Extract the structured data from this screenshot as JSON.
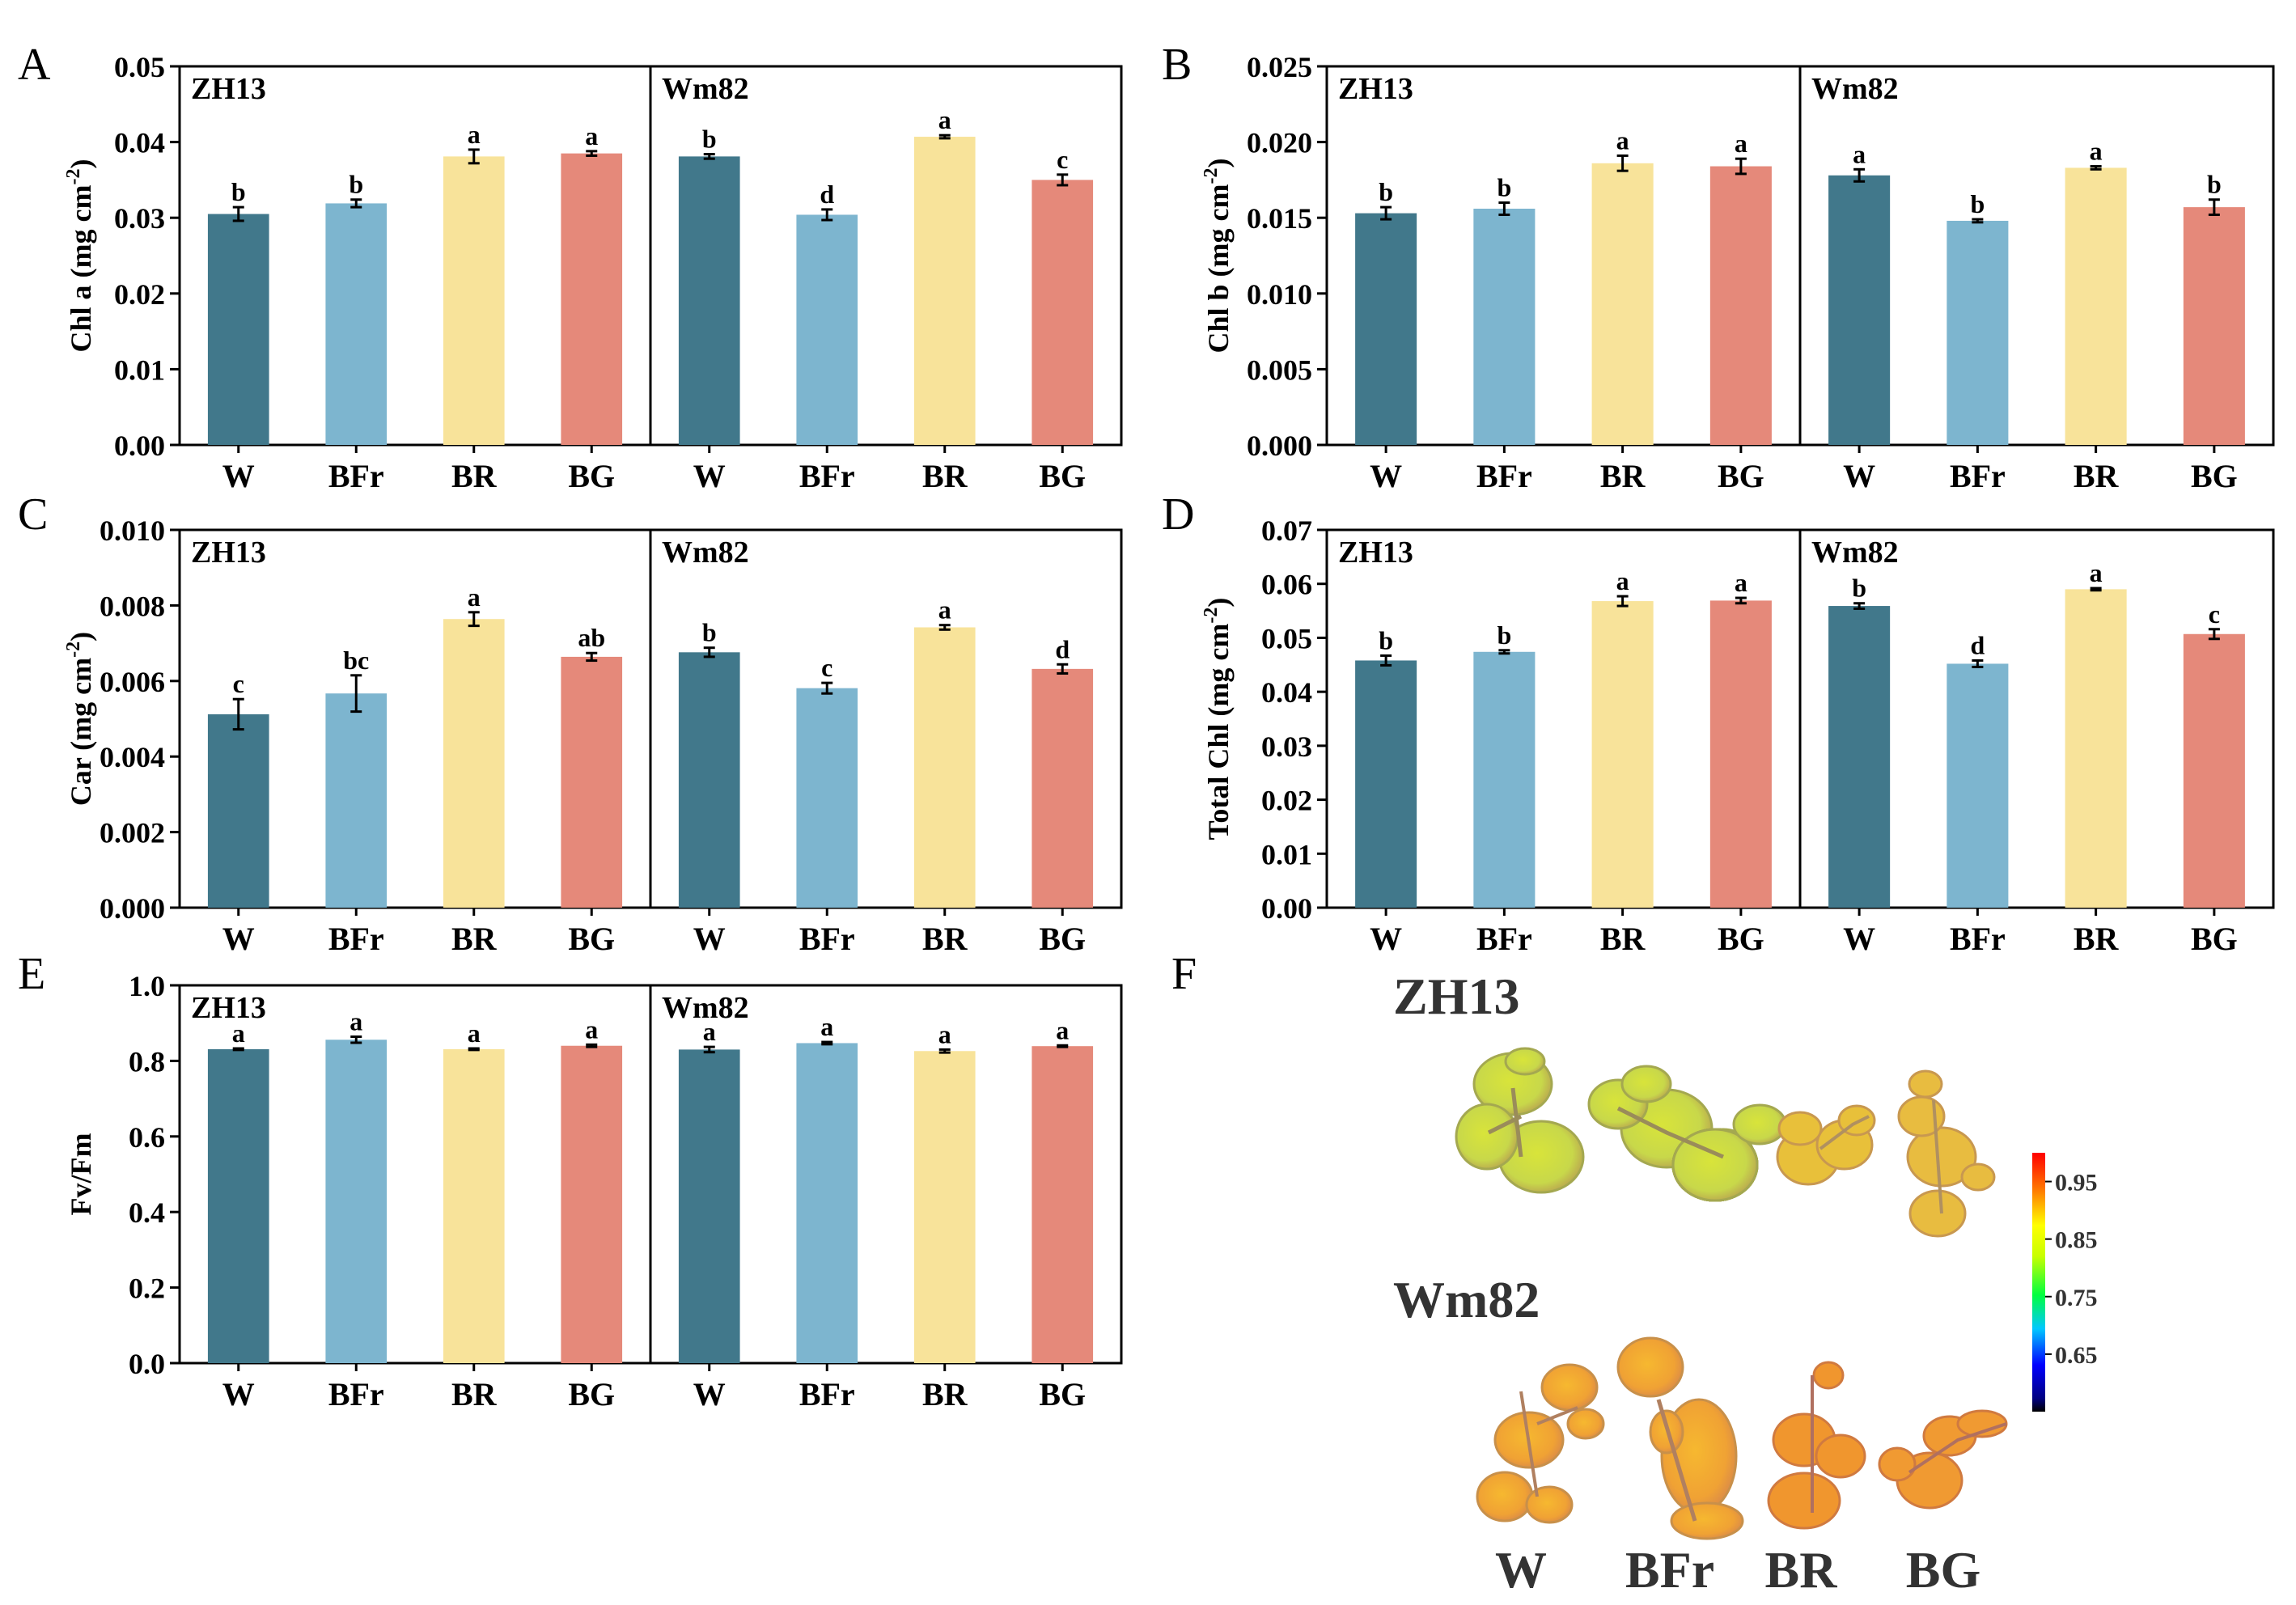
{
  "figure": {
    "labels": [
      "A",
      "B",
      "C",
      "D",
      "E",
      "F"
    ],
    "categories": [
      "W",
      "BFr",
      "BR",
      "BG"
    ],
    "groups": [
      "ZH13",
      "Wm82"
    ],
    "colors": {
      "W": "#41788B",
      "BFr": "#7DB5CF",
      "BR": "#F8E39A",
      "BG": "#E5897A"
    }
  },
  "chart_data": [
    {
      "panel": "A",
      "type": "bar",
      "ylabel": "Chl a (mg cm-2)",
      "ylabel_main": "Chl a (mg cm",
      "ylabel_sup": "-2",
      "ylabel_end": ")",
      "ylim": [
        0,
        0.05
      ],
      "yticks": [
        "0.00",
        "0.01",
        "0.02",
        "0.03",
        "0.04",
        "0.05"
      ],
      "categories": [
        "W",
        "BFr",
        "BR",
        "BG"
      ],
      "series": [
        {
          "name": "ZH13",
          "values": [
            0.0305,
            0.0319,
            0.0381,
            0.0385
          ],
          "errors": [
            0.0009,
            0.0005,
            0.0009,
            0.0003
          ],
          "letters": [
            "b",
            "b",
            "a",
            "a"
          ]
        },
        {
          "name": "Wm82",
          "values": [
            0.0381,
            0.0304,
            0.0407,
            0.035
          ],
          "errors": [
            0.0003,
            0.0007,
            0.0002,
            0.0007
          ],
          "letters": [
            "b",
            "d",
            "a",
            "c"
          ]
        }
      ]
    },
    {
      "panel": "B",
      "type": "bar",
      "ylabel": "Chl b (mg cm-2)",
      "ylabel_main": "Chl b (mg cm",
      "ylabel_sup": "-2",
      "ylabel_end": ")",
      "ylim": [
        0,
        0.025
      ],
      "yticks": [
        "0.000",
        "0.005",
        "0.010",
        "0.015",
        "0.020",
        "0.025"
      ],
      "categories": [
        "W",
        "BFr",
        "BR",
        "BG"
      ],
      "series": [
        {
          "name": "ZH13",
          "values": [
            0.0153,
            0.0156,
            0.0186,
            0.0184
          ],
          "errors": [
            0.0004,
            0.0004,
            0.0005,
            0.0005
          ],
          "letters": [
            "b",
            "b",
            "a",
            "a"
          ]
        },
        {
          "name": "Wm82",
          "values": [
            0.0178,
            0.0148,
            0.0183,
            0.0157
          ],
          "errors": [
            0.0004,
            0.0001,
            0.0001,
            0.0005
          ],
          "letters": [
            "a",
            "b",
            "a",
            "b"
          ]
        }
      ]
    },
    {
      "panel": "C",
      "type": "bar",
      "ylabel": "Car (mg cm-2)",
      "ylabel_main": "Car (mg cm",
      "ylabel_sup": "-2",
      "ylabel_end": ")",
      "ylim": [
        0,
        0.01
      ],
      "yticks": [
        "0.000",
        "0.002",
        "0.004",
        "0.006",
        "0.008",
        "0.010"
      ],
      "categories": [
        "W",
        "BFr",
        "BR",
        "BG"
      ],
      "series": [
        {
          "name": "ZH13",
          "values": [
            0.00512,
            0.00567,
            0.00764,
            0.00664
          ],
          "errors": [
            0.0004,
            0.00048,
            0.00018,
            0.0001
          ],
          "letters": [
            "c",
            "bc",
            "a",
            "ab"
          ]
        },
        {
          "name": "Wm82",
          "values": [
            0.00676,
            0.00581,
            0.00742,
            0.00632
          ],
          "errors": [
            0.00012,
            0.00014,
            6e-05,
            0.00012
          ],
          "letters": [
            "b",
            "c",
            "a",
            "d"
          ]
        }
      ]
    },
    {
      "panel": "D",
      "type": "bar",
      "ylabel": "Total Chl (mg cm-2)",
      "ylabel_main": "Total Chl (mg cm",
      "ylabel_sup": "-2",
      "ylabel_end": ")",
      "ylim": [
        0,
        0.07
      ],
      "yticks": [
        "0.00",
        "0.01",
        "0.02",
        "0.03",
        "0.04",
        "0.05",
        "0.06",
        "0.07"
      ],
      "categories": [
        "W",
        "BFr",
        "BR",
        "BG"
      ],
      "series": [
        {
          "name": "ZH13",
          "values": [
            0.0458,
            0.0474,
            0.0568,
            0.0569
          ],
          "errors": [
            0.0009,
            0.0003,
            0.0009,
            0.0005
          ],
          "letters": [
            "b",
            "b",
            "a",
            "a"
          ]
        },
        {
          "name": "Wm82",
          "values": [
            0.0559,
            0.0452,
            0.059,
            0.0507
          ],
          "errors": [
            0.0005,
            0.0006,
            0.0002,
            0.0009
          ],
          "letters": [
            "b",
            "d",
            "a",
            "c"
          ]
        }
      ]
    },
    {
      "panel": "E",
      "type": "bar",
      "ylabel": "Fv/Fm",
      "ylabel_main": "Fv/Fm",
      "ylabel_sup": "",
      "ylabel_end": "",
      "ylim": [
        0,
        1.0
      ],
      "yticks": [
        "0.0",
        "0.2",
        "0.4",
        "0.6",
        "0.8",
        "1.0"
      ],
      "categories": [
        "W",
        "BFr",
        "BR",
        "BG"
      ],
      "series": [
        {
          "name": "ZH13",
          "values": [
            0.831,
            0.856,
            0.831,
            0.84
          ],
          "errors": [
            0.002,
            0.008,
            0.002,
            0.003
          ],
          "letters": [
            "a",
            "a",
            "a",
            "a"
          ]
        },
        {
          "name": "Wm82",
          "values": [
            0.83,
            0.847,
            0.826,
            0.839
          ],
          "errors": [
            0.007,
            0.003,
            0.004,
            0.002
          ],
          "letters": [
            "a",
            "a",
            "a",
            "a"
          ]
        }
      ]
    }
  ],
  "panel_f": {
    "label": "F",
    "rows": [
      "ZH13",
      "Wm82"
    ],
    "columns": [
      "W",
      "BFr",
      "BR",
      "BG"
    ],
    "colorbar_ticks": [
      "0.95",
      "0.85",
      "0.75",
      "0.65"
    ],
    "colorbar_range": [
      0.55,
      1.0
    ]
  }
}
